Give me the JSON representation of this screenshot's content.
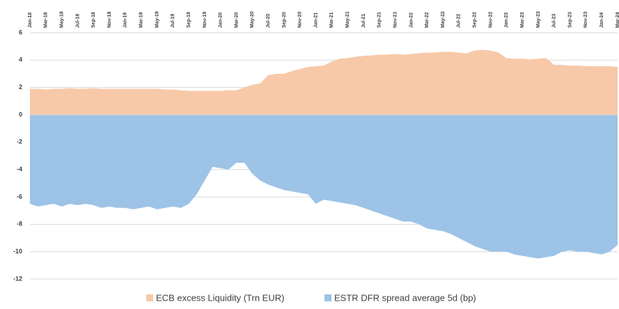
{
  "chart_data": {
    "type": "area",
    "categories": [
      "Jan-18",
      null,
      "Mar-18",
      null,
      "May-18",
      null,
      "Jul-18",
      null,
      "Sep-18",
      null,
      "Nov-18",
      null,
      "Jan-19",
      null,
      "Mar-19",
      null,
      "May-19",
      null,
      "Jul-19",
      null,
      "Sep-19",
      null,
      "Nov-19",
      null,
      "Jan-20",
      null,
      "Mar-20",
      null,
      "May-20",
      null,
      "Jul-20",
      null,
      "Sep-20",
      null,
      "Nov-20",
      null,
      "Jan-21",
      null,
      "Mar-21",
      null,
      "May-21",
      null,
      "Jul-21",
      null,
      "Sep-21",
      null,
      "Nov-21",
      null,
      "Jan-22",
      null,
      "Mar-22",
      null,
      "May-22",
      null,
      "Jul-22",
      null,
      "Sep-22",
      null,
      "Nov-22",
      null,
      "Jan-23",
      null,
      "Mar-23",
      null,
      "May-23",
      null,
      "Jul-23",
      null,
      "Sep-23",
      null,
      "Nov-23",
      null,
      "Jan-24",
      null,
      "Mar-24"
    ],
    "series": [
      {
        "name": "ECB excess Liquidity (Trn EUR)",
        "color": "#f7c9a9",
        "values": [
          1.9,
          1.9,
          1.85,
          1.9,
          1.9,
          1.95,
          1.9,
          1.9,
          1.95,
          1.9,
          1.9,
          1.9,
          1.9,
          1.9,
          1.9,
          1.9,
          1.9,
          1.85,
          1.85,
          1.8,
          1.75,
          1.75,
          1.75,
          1.75,
          1.75,
          1.8,
          1.8,
          2.0,
          2.2,
          2.3,
          2.9,
          3.0,
          3.0,
          3.2,
          3.35,
          3.5,
          3.55,
          3.6,
          3.9,
          4.1,
          4.15,
          4.25,
          4.3,
          4.35,
          4.4,
          4.4,
          4.45,
          4.4,
          4.45,
          4.5,
          4.55,
          4.55,
          4.6,
          4.6,
          4.55,
          4.5,
          4.7,
          4.75,
          4.7,
          4.55,
          4.15,
          4.1,
          4.1,
          4.05,
          4.1,
          4.15,
          3.65,
          3.65,
          3.6,
          3.6,
          3.55,
          3.55,
          3.55,
          3.55,
          3.5
        ]
      },
      {
        "name": "ESTR DFR spread average 5d (bp)",
        "color": "#9dc3e6",
        "values": [
          -6.5,
          -6.7,
          -6.6,
          -6.5,
          -6.7,
          -6.5,
          -6.6,
          -6.5,
          -6.6,
          -6.8,
          -6.7,
          -6.8,
          -6.8,
          -6.9,
          -6.8,
          -6.7,
          -6.9,
          -6.8,
          -6.7,
          -6.8,
          -6.5,
          -5.8,
          -4.8,
          -3.8,
          -3.9,
          -4.0,
          -3.5,
          -3.5,
          -4.3,
          -4.8,
          -5.1,
          -5.3,
          -5.5,
          -5.6,
          -5.7,
          -5.8,
          -6.5,
          -6.2,
          -6.3,
          -6.4,
          -6.5,
          -6.6,
          -6.8,
          -7.0,
          -7.2,
          -7.4,
          -7.6,
          -7.8,
          -7.8,
          -8.0,
          -8.3,
          -8.4,
          -8.5,
          -8.7,
          -9.0,
          -9.3,
          -9.6,
          -9.8,
          -10.0,
          -10.0,
          -10.0,
          -10.2,
          -10.3,
          -10.4,
          -10.5,
          -10.4,
          -10.3,
          -10.0,
          -9.9,
          -10.0,
          -10.0,
          -10.1,
          -10.2,
          -10.0,
          -9.5
        ]
      }
    ],
    "ylim": [
      -12,
      6
    ],
    "yticks": [
      -12,
      -10,
      -8,
      -6,
      -4,
      -2,
      0,
      2,
      4,
      6
    ],
    "grid": true,
    "legend": "bottom"
  }
}
